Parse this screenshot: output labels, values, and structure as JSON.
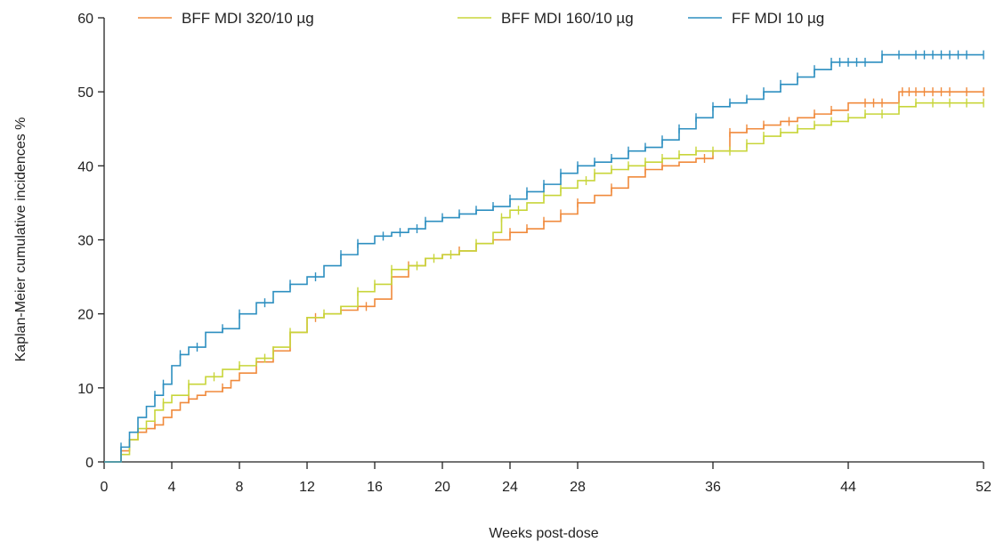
{
  "chart_data": {
    "type": "line",
    "title": "",
    "xlabel": "Weeks post-dose",
    "ylabel": "Kaplan-Meier cumulative incidences %",
    "xlim": [
      0,
      52
    ],
    "ylim": [
      0,
      60
    ],
    "x_ticks": [
      0,
      4,
      8,
      12,
      16,
      20,
      24,
      28,
      36,
      44,
      52
    ],
    "y_ticks": [
      0,
      10,
      20,
      30,
      40,
      50,
      60
    ],
    "grid": false,
    "legend_position": "top",
    "step": true,
    "censor_marks": true,
    "series": [
      {
        "name": "BFF MDI 320/10 µg",
        "color": "#f08a3c",
        "points": [
          [
            0,
            0
          ],
          [
            0.7,
            0
          ],
          [
            1,
            1.5
          ],
          [
            1.5,
            3
          ],
          [
            2,
            4
          ],
          [
            2.5,
            4.5
          ],
          [
            3,
            5
          ],
          [
            3.5,
            6
          ],
          [
            4,
            7
          ],
          [
            4.5,
            8
          ],
          [
            5,
            8.5
          ],
          [
            5.5,
            9
          ],
          [
            6,
            9.5
          ],
          [
            7,
            10
          ],
          [
            7.5,
            11
          ],
          [
            8,
            12
          ],
          [
            9,
            13.5
          ],
          [
            10,
            15
          ],
          [
            11,
            17.5
          ],
          [
            12,
            19.5
          ],
          [
            13,
            20
          ],
          [
            14,
            20.5
          ],
          [
            15,
            21
          ],
          [
            16,
            22
          ],
          [
            17,
            25
          ],
          [
            18,
            26.5
          ],
          [
            19,
            27.5
          ],
          [
            20,
            28
          ],
          [
            21,
            28.5
          ],
          [
            22,
            29.5
          ],
          [
            23,
            30
          ],
          [
            24,
            31
          ],
          [
            25,
            31.5
          ],
          [
            26,
            32.5
          ],
          [
            27,
            33.5
          ],
          [
            28,
            35
          ],
          [
            29,
            36
          ],
          [
            30,
            37
          ],
          [
            31,
            38.5
          ],
          [
            32,
            39.5
          ],
          [
            33,
            40
          ],
          [
            34,
            40.5
          ],
          [
            35,
            41
          ],
          [
            36,
            42
          ],
          [
            37,
            44.5
          ],
          [
            38,
            45
          ],
          [
            39,
            45.5
          ],
          [
            40,
            46
          ],
          [
            41,
            46.5
          ],
          [
            42,
            47
          ],
          [
            43,
            47.5
          ],
          [
            44,
            48.5
          ],
          [
            46,
            48.5
          ],
          [
            47,
            50
          ],
          [
            52,
            50
          ]
        ],
        "censor_x": [
          3,
          5,
          7,
          10,
          12.5,
          14,
          15.5,
          18,
          21,
          24,
          25,
          26,
          27,
          28,
          30,
          32,
          33,
          35.5,
          37,
          38,
          39,
          40.5,
          42,
          43,
          45,
          45.5,
          46,
          47.2,
          47.6,
          48,
          48.5,
          49,
          49.5,
          50,
          51,
          52
        ]
      },
      {
        "name": "BFF MDI 160/10 µg",
        "color": "#c8d53a",
        "points": [
          [
            0,
            0
          ],
          [
            0.7,
            0
          ],
          [
            1,
            1
          ],
          [
            1.5,
            3
          ],
          [
            2,
            4.5
          ],
          [
            2.5,
            5.5
          ],
          [
            3,
            7
          ],
          [
            3.5,
            8
          ],
          [
            4,
            9
          ],
          [
            5,
            10.5
          ],
          [
            6,
            11.5
          ],
          [
            7,
            12.5
          ],
          [
            8,
            13
          ],
          [
            9,
            14
          ],
          [
            10,
            15.5
          ],
          [
            11,
            17.5
          ],
          [
            12,
            19.5
          ],
          [
            13,
            20
          ],
          [
            14,
            21
          ],
          [
            15,
            23
          ],
          [
            16,
            24
          ],
          [
            17,
            26
          ],
          [
            18,
            26.5
          ],
          [
            19,
            27.5
          ],
          [
            20,
            28
          ],
          [
            21,
            28.5
          ],
          [
            22,
            29.5
          ],
          [
            23,
            31
          ],
          [
            23.5,
            33
          ],
          [
            24,
            34
          ],
          [
            25,
            35
          ],
          [
            26,
            36
          ],
          [
            27,
            37
          ],
          [
            28,
            38
          ],
          [
            29,
            39
          ],
          [
            30,
            39.5
          ],
          [
            31,
            40
          ],
          [
            32,
            40.5
          ],
          [
            33,
            41
          ],
          [
            34,
            41.5
          ],
          [
            35,
            42
          ],
          [
            36,
            42
          ],
          [
            37,
            42
          ],
          [
            38,
            43
          ],
          [
            39,
            44
          ],
          [
            40,
            44.5
          ],
          [
            41,
            45
          ],
          [
            42,
            45.5
          ],
          [
            43,
            46
          ],
          [
            44,
            46.5
          ],
          [
            45,
            47
          ],
          [
            47,
            48
          ],
          [
            48,
            48.5
          ],
          [
            52,
            48.5
          ]
        ],
        "censor_x": [
          3.5,
          5,
          6.5,
          8,
          9.5,
          11,
          13,
          15,
          16,
          17,
          18.5,
          19.5,
          20.5,
          22,
          23.5,
          24.5,
          26,
          27,
          28.5,
          29,
          30,
          31,
          32,
          33,
          34,
          35,
          36,
          37,
          38,
          39,
          40,
          41,
          42,
          43,
          44,
          45,
          46,
          47,
          48,
          49,
          50,
          51,
          52
        ]
      },
      {
        "name": "FF MDI 10 µg",
        "color": "#2d8fc0",
        "points": [
          [
            0,
            0
          ],
          [
            0.7,
            0
          ],
          [
            1,
            2
          ],
          [
            1.5,
            4
          ],
          [
            2,
            6
          ],
          [
            2.5,
            7.5
          ],
          [
            3,
            9
          ],
          [
            3.5,
            10.5
          ],
          [
            4,
            13
          ],
          [
            4.5,
            14.5
          ],
          [
            5,
            15.5
          ],
          [
            6,
            17.5
          ],
          [
            7,
            18
          ],
          [
            8,
            20
          ],
          [
            9,
            21.5
          ],
          [
            10,
            23
          ],
          [
            11,
            24
          ],
          [
            12,
            25
          ],
          [
            13,
            26.5
          ],
          [
            14,
            28
          ],
          [
            15,
            29.5
          ],
          [
            16,
            30.5
          ],
          [
            17,
            31
          ],
          [
            18,
            31.5
          ],
          [
            19,
            32.5
          ],
          [
            20,
            33
          ],
          [
            21,
            33.5
          ],
          [
            22,
            34
          ],
          [
            23,
            34.5
          ],
          [
            24,
            35.5
          ],
          [
            25,
            36.5
          ],
          [
            26,
            37.5
          ],
          [
            27,
            39
          ],
          [
            28,
            40
          ],
          [
            29,
            40.5
          ],
          [
            30,
            41
          ],
          [
            31,
            42
          ],
          [
            32,
            42.5
          ],
          [
            33,
            43.5
          ],
          [
            34,
            45
          ],
          [
            35,
            46.5
          ],
          [
            36,
            48
          ],
          [
            37,
            48.5
          ],
          [
            38,
            49
          ],
          [
            39,
            50
          ],
          [
            40,
            51
          ],
          [
            41,
            52
          ],
          [
            42,
            53
          ],
          [
            43,
            54
          ],
          [
            46,
            55
          ],
          [
            52,
            55
          ]
        ],
        "censor_x": [
          1,
          3,
          3.5,
          4.5,
          5.5,
          7,
          8,
          9.5,
          11,
          12.5,
          14,
          15,
          16.5,
          17.5,
          18.5,
          19,
          20,
          21,
          22,
          23,
          24,
          25,
          26,
          27,
          28,
          29,
          30,
          31,
          32,
          33,
          34,
          35,
          36,
          37,
          38,
          39,
          40,
          41,
          42,
          43,
          43.5,
          44,
          44.5,
          45,
          46,
          47,
          48,
          48.5,
          49,
          49.5,
          50,
          50.5,
          51,
          52
        ]
      }
    ]
  }
}
